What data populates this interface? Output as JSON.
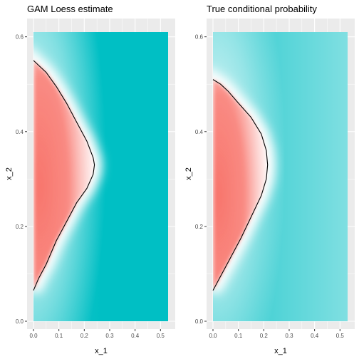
{
  "chart_data": [
    {
      "type": "heatmap",
      "title": "GAM Loess estimate",
      "xlabel": "x_1",
      "ylabel": "x_2",
      "xlim": [
        0,
        0.53
      ],
      "ylim": [
        0,
        0.61
      ],
      "xticks": [
        "0.0",
        "0.1",
        "0.2",
        "0.3",
        "0.4",
        "0.5"
      ],
      "yticks": [
        "0.0",
        "0.2",
        "0.4",
        "0.6"
      ],
      "grid": true,
      "low_color": "#f8766d",
      "mid_color": "#ffffff",
      "high_color": "#00bfc4",
      "boundary": [
        [
          0.0,
          0.065
        ],
        [
          0.02,
          0.09
        ],
        [
          0.05,
          0.12
        ],
        [
          0.09,
          0.17
        ],
        [
          0.13,
          0.21
        ],
        [
          0.17,
          0.25
        ],
        [
          0.21,
          0.28
        ],
        [
          0.235,
          0.31
        ],
        [
          0.24,
          0.33
        ],
        [
          0.235,
          0.345
        ],
        [
          0.21,
          0.38
        ],
        [
          0.17,
          0.42
        ],
        [
          0.13,
          0.46
        ],
        [
          0.09,
          0.495
        ],
        [
          0.05,
          0.525
        ],
        [
          0.02,
          0.54
        ],
        [
          0.0,
          0.55
        ]
      ]
    },
    {
      "type": "heatmap",
      "title": "True conditional probability",
      "xlabel": "x_1",
      "ylabel": "x_2",
      "xlim": [
        0,
        0.53
      ],
      "ylim": [
        0,
        0.61
      ],
      "xticks": [
        "0.0",
        "0.1",
        "0.2",
        "0.3",
        "0.4",
        "0.5"
      ],
      "yticks": [
        "0.0",
        "0.2",
        "0.4",
        "0.6"
      ],
      "grid": true,
      "low_color": "#f8766d",
      "mid_color": "#ffffff",
      "high_color": "#00bfc4",
      "boundary": [
        [
          0.0,
          0.065
        ],
        [
          0.03,
          0.095
        ],
        [
          0.07,
          0.135
        ],
        [
          0.11,
          0.175
        ],
        [
          0.15,
          0.22
        ],
        [
          0.19,
          0.265
        ],
        [
          0.21,
          0.3
        ],
        [
          0.215,
          0.33
        ],
        [
          0.21,
          0.36
        ],
        [
          0.19,
          0.395
        ],
        [
          0.15,
          0.43
        ],
        [
          0.1,
          0.46
        ],
        [
          0.06,
          0.485
        ],
        [
          0.03,
          0.5
        ],
        [
          0.0,
          0.51
        ]
      ]
    }
  ]
}
